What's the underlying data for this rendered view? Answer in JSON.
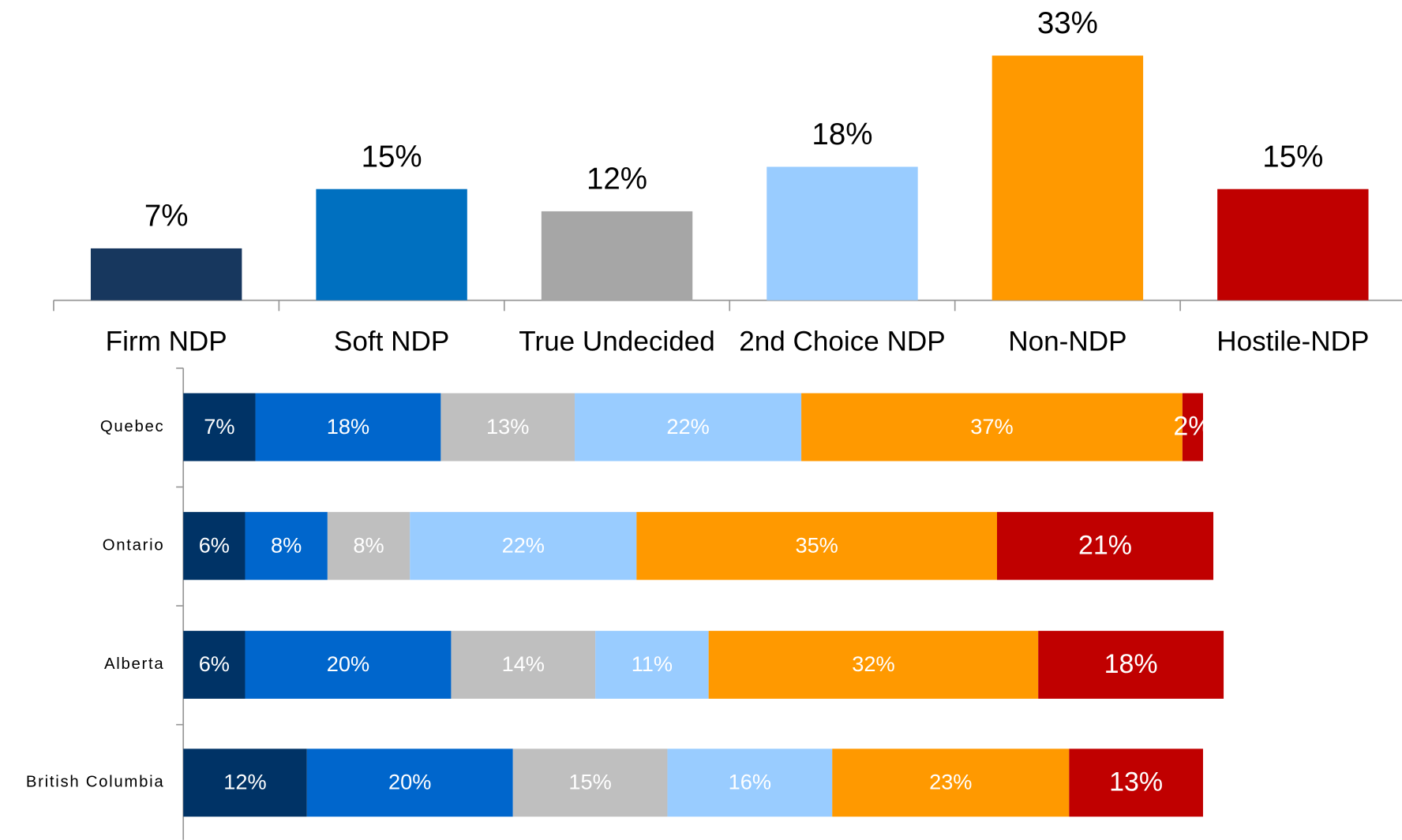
{
  "chart_data": [
    {
      "type": "bar",
      "categories": [
        "Firm NDP",
        "Soft NDP",
        "True Undecided",
        "2nd Choice NDP",
        "Non-NDP",
        "Hostile-NDP"
      ],
      "values": [
        7,
        15,
        12,
        18,
        33,
        15
      ],
      "value_labels": [
        "7%",
        "15%",
        "12%",
        "18%",
        "33%",
        "15%"
      ],
      "colors": [
        "#17375e",
        "#0070c0",
        "#a6a6a6",
        "#99ccff",
        "#ff9900",
        "#c00000"
      ]
    },
    {
      "type": "stacked_bar_horizontal",
      "categories": [
        "Quebec",
        "Ontario",
        "Alberta",
        "British Columbia"
      ],
      "series": [
        {
          "color": "#003366",
          "values": [
            7,
            6,
            6,
            12
          ],
          "value_labels": [
            "7%",
            "6%",
            "6%",
            "12%"
          ]
        },
        {
          "color": "#0066cc",
          "values": [
            18,
            8,
            20,
            20
          ],
          "value_labels": [
            "18%",
            "8%",
            "20%",
            "20%"
          ]
        },
        {
          "color": "#bfbfbf",
          "values": [
            13,
            8,
            14,
            15
          ],
          "value_labels": [
            "13%",
            "8%",
            "14%",
            "15%"
          ]
        },
        {
          "color": "#99ccff",
          "values": [
            22,
            22,
            11,
            16
          ],
          "value_labels": [
            "22%",
            "22%",
            "11%",
            "16%"
          ]
        },
        {
          "color": "#ff9900",
          "values": [
            37,
            35,
            32,
            23
          ],
          "value_labels": [
            "37%",
            "35%",
            "32%",
            "23%"
          ]
        },
        {
          "color": "#c00000",
          "values": [
            2,
            21,
            18,
            13
          ],
          "value_labels": [
            "2%",
            "21%",
            "18%",
            "13%"
          ]
        }
      ]
    }
  ]
}
